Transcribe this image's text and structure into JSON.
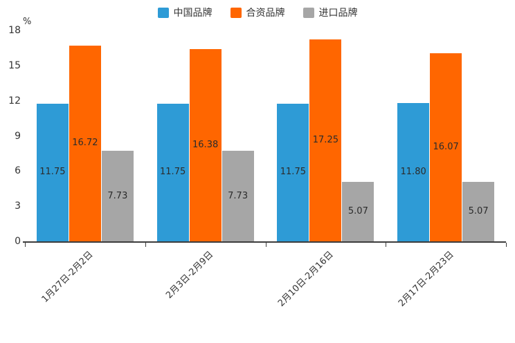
{
  "chart_data": {
    "type": "bar",
    "title": "",
    "unit_label": "%",
    "categories": [
      "1月27日-2月2日",
      "2月3日-2月9日",
      "2月10日-2月16日",
      "2月17日-2月23日"
    ],
    "series": [
      {
        "name": "中国品牌",
        "color": "#2e9bd6",
        "values": [
          11.75,
          11.75,
          11.75,
          11.8
        ]
      },
      {
        "name": "合资品牌",
        "color": "#ff6600",
        "values": [
          16.72,
          16.38,
          17.25,
          16.07
        ]
      },
      {
        "name": "进口品牌",
        "color": "#a6a6a6",
        "values": [
          7.73,
          7.73,
          5.07,
          5.07
        ]
      }
    ],
    "ylim": [
      0,
      18
    ],
    "yticks": [
      0,
      3,
      6,
      9,
      12,
      15,
      18
    ],
    "grid": false,
    "legend_position": "top",
    "value_labels": true,
    "value_label_decimals": 2
  }
}
